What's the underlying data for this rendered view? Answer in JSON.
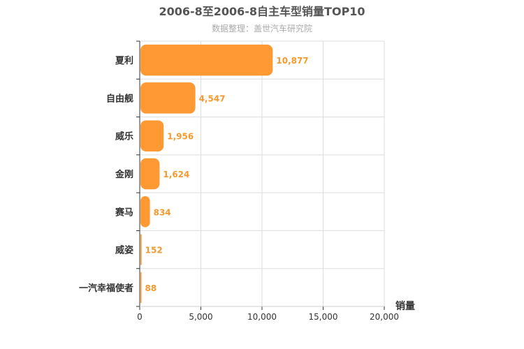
{
  "chart_data": {
    "type": "bar",
    "orientation": "horizontal",
    "title": "2006-8至2006-8自主车型销量TOP10",
    "subtitle": "数据整理：盖世汽车研究院",
    "categories": [
      "夏利",
      "自由舰",
      "威乐",
      "金刚",
      "赛马",
      "威姿",
      "一汽幸福使者"
    ],
    "values": [
      10877,
      4547,
      1956,
      1624,
      834,
      152,
      88
    ],
    "value_labels": [
      "10,877",
      "4,547",
      "1,956",
      "1,624",
      "834",
      "152",
      "88"
    ],
    "xlabel": "销量",
    "ylabel": "",
    "xlim": [
      0,
      20000
    ],
    "x_ticks": [
      0,
      5000,
      10000,
      15000,
      20000
    ],
    "x_tick_labels": [
      "0",
      "5,000",
      "10,000",
      "15,000",
      "20,000"
    ],
    "grid": true,
    "bar_color": "#ff9933"
  }
}
